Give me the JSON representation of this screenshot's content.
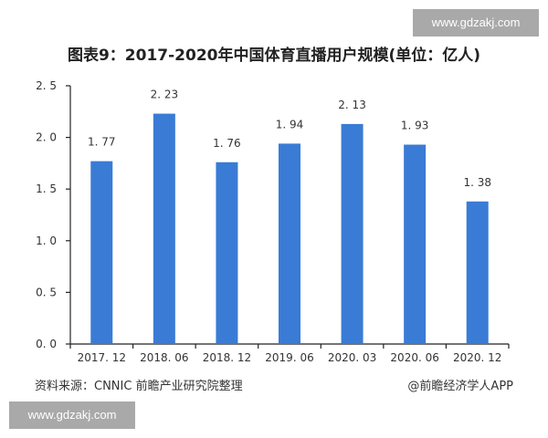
{
  "watermarks": {
    "top_right": "www.gdzakj.com",
    "bottom_left": "www.gdzakj.com"
  },
  "colors": {
    "bar": "#3a7bd5",
    "axis": "#222222",
    "text": "#333333"
  },
  "footer": {
    "source": "资料来源：CNNIC 前瞻产业研究院整理",
    "credit": "@前瞻经济学人APP"
  },
  "chart_data": {
    "type": "bar",
    "title": "图表9：2017-2020年中国体育直播用户规模(单位：亿人)",
    "xlabel": "",
    "ylabel": "",
    "unit": "亿人",
    "categories": [
      "2017.12",
      "2018.06",
      "2018.12",
      "2019.06",
      "2020.03",
      "2020.06",
      "2020.12"
    ],
    "values": [
      1.77,
      2.23,
      1.76,
      1.94,
      2.13,
      1.93,
      1.38
    ],
    "data_labels": [
      "1.77",
      "2.23",
      "1.76",
      "1.94",
      "2.13",
      "1.93",
      "1.38"
    ],
    "ylim": [
      0,
      2.5
    ],
    "yticks": [
      "0.0",
      "0.5",
      "1.0",
      "1.5",
      "2.0",
      "2.5"
    ],
    "grid": false,
    "legend": null
  }
}
